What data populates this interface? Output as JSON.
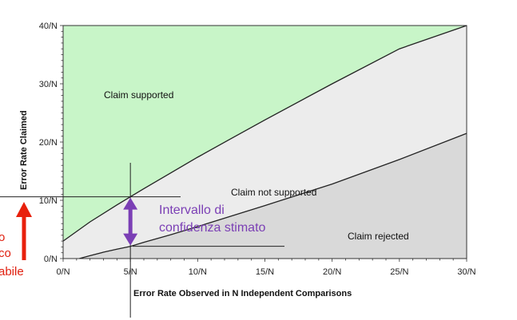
{
  "chart_data": {
    "type": "area",
    "xlabel": "Error Rate Observed in N Independent Comparisons",
    "ylabel": "Error Rate Claimed",
    "xlim": [
      0,
      30
    ],
    "ylim": [
      0,
      40
    ],
    "x_ticks": [
      "0/N",
      "5/N",
      "10/N",
      "15/N",
      "20/N",
      "25/N",
      "30/N"
    ],
    "y_ticks": [
      "0/N",
      "10/N",
      "20/N",
      "30/N",
      "40/N"
    ],
    "boundaries": [
      {
        "name": "upper",
        "x": [
          0,
          2,
          4,
          5,
          6,
          8,
          10,
          12.5,
          15,
          20,
          25,
          30
        ],
        "y": [
          3,
          6.3,
          9.2,
          10.6,
          12,
          14.7,
          17.4,
          20.6,
          23.8,
          30,
          36,
          41.8
        ]
      },
      {
        "name": "lower",
        "x": [
          1.2,
          2,
          3,
          4,
          5,
          6,
          8,
          10,
          15,
          20,
          25,
          30
        ],
        "y": [
          0,
          0.5,
          1.1,
          1.6,
          2.1,
          2.8,
          4.1,
          5.5,
          9.1,
          12.8,
          17,
          21.5
        ]
      }
    ],
    "regions": [
      {
        "label": "Claim supported",
        "color": "#c8f5c8"
      },
      {
        "label": "Claim not supported",
        "color": "#ececec"
      },
      {
        "label": "Claim rejected",
        "color": "#d9d9d9"
      }
    ],
    "annotations": {
      "interval": {
        "x": 5,
        "y_top": 10.6,
        "y_bottom": 2.1,
        "color": "#7b3fb5"
      },
      "interval_label": [
        "Intervallo di",
        "confidenza stimato"
      ],
      "red_label": [
        "o",
        "co",
        "abile"
      ],
      "red_color": "#e8200c"
    },
    "grid": false,
    "legend": "none"
  }
}
